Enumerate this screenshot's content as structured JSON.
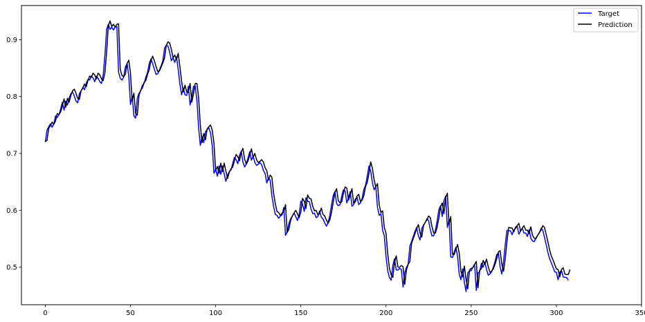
{
  "chart_data": {
    "type": "line",
    "title": "",
    "xlabel": "",
    "ylabel": "",
    "xlim": [
      -14,
      350
    ],
    "ylim": [
      0.434,
      0.96
    ],
    "x_ticks": [
      0,
      50,
      100,
      150,
      200,
      250,
      300,
      350
    ],
    "y_ticks": [
      0.5,
      0.6,
      0.7,
      0.8,
      0.9
    ],
    "grid": false,
    "legend_position": "top-right",
    "series": [
      {
        "name": "Target",
        "color": "#0000ff",
        "x_start": 0,
        "values": [
          0.72,
          0.741,
          0.747,
          0.752,
          0.746,
          0.752,
          0.766,
          0.763,
          0.768,
          0.778,
          0.79,
          0.776,
          0.792,
          0.785,
          0.797,
          0.805,
          0.808,
          0.801,
          0.792,
          0.789,
          0.805,
          0.81,
          0.816,
          0.812,
          0.823,
          0.83,
          0.829,
          0.836,
          0.833,
          0.826,
          0.836,
          0.832,
          0.826,
          0.823,
          0.838,
          0.873,
          0.918,
          0.927,
          0.918,
          0.922,
          0.917,
          0.922,
          0.923,
          0.843,
          0.832,
          0.829,
          0.834,
          0.852,
          0.858,
          0.836,
          0.786,
          0.801,
          0.766,
          0.762,
          0.797,
          0.806,
          0.81,
          0.82,
          0.823,
          0.834,
          0.842,
          0.858,
          0.866,
          0.858,
          0.848,
          0.839,
          0.84,
          0.847,
          0.854,
          0.863,
          0.885,
          0.89,
          0.889,
          0.878,
          0.863,
          0.868,
          0.86,
          0.87,
          0.848,
          0.822,
          0.803,
          0.815,
          0.803,
          0.802,
          0.818,
          0.785,
          0.8,
          0.818,
          0.818,
          0.793,
          0.745,
          0.714,
          0.73,
          0.719,
          0.738,
          0.742,
          0.745,
          0.736,
          0.713,
          0.665,
          0.672,
          0.66,
          0.678,
          0.663,
          0.678,
          0.664,
          0.651,
          0.662,
          0.668,
          0.671,
          0.682,
          0.693,
          0.689,
          0.682,
          0.697,
          0.704,
          0.685,
          0.676,
          0.682,
          0.692,
          0.703,
          0.688,
          0.695,
          0.684,
          0.679,
          0.681,
          0.684,
          0.68,
          0.67,
          0.665,
          0.648,
          0.657,
          0.653,
          0.625,
          0.607,
          0.593,
          0.591,
          0.586,
          0.59,
          0.592,
          0.605,
          0.556,
          0.562,
          0.577,
          0.585,
          0.59,
          0.595,
          0.589,
          0.582,
          0.592,
          0.616,
          0.611,
          0.598,
          0.622,
          0.616,
          0.615,
          0.602,
          0.594,
          0.595,
          0.587,
          0.589,
          0.599,
          0.588,
          0.585,
          0.578,
          0.572,
          0.578,
          0.591,
          0.609,
          0.626,
          0.633,
          0.612,
          0.608,
          0.61,
          0.625,
          0.636,
          0.634,
          0.613,
          0.622,
          0.633,
          0.607,
          0.61,
          0.62,
          0.623,
          0.61,
          0.613,
          0.621,
          0.637,
          0.644,
          0.66,
          0.678,
          0.669,
          0.649,
          0.636,
          0.642,
          0.605,
          0.591,
          0.594,
          0.565,
          0.555,
          0.519,
          0.493,
          0.482,
          0.477,
          0.503,
          0.515,
          0.495,
          0.495,
          0.498,
          0.496,
          0.465,
          0.49,
          0.5,
          0.505,
          0.537,
          0.545,
          0.554,
          0.563,
          0.57,
          0.555,
          0.548,
          0.568,
          0.574,
          0.578,
          0.585,
          0.582,
          0.566,
          0.555,
          0.555,
          0.565,
          0.581,
          0.601,
          0.608,
          0.589,
          0.617,
          0.625,
          0.57,
          0.584,
          0.518,
          0.517,
          0.526,
          0.535,
          0.519,
          0.487,
          0.478,
          0.497,
          0.473,
          0.457,
          0.49,
          0.493,
          0.494,
          0.5,
          0.505,
          0.459,
          0.49,
          0.492,
          0.507,
          0.5,
          0.509,
          0.496,
          0.486,
          0.488,
          0.492,
          0.5,
          0.51,
          0.522,
          0.524,
          0.5,
          0.488,
          0.51,
          0.54,
          0.565,
          0.564,
          0.564,
          0.557,
          0.565,
          0.568,
          0.572,
          0.558,
          0.564,
          0.568,
          0.56,
          0.56,
          0.554,
          0.566,
          0.551,
          0.546,
          0.545,
          0.551,
          0.556,
          0.56,
          0.568,
          0.565,
          0.553,
          0.54,
          0.526,
          0.515,
          0.508,
          0.5,
          0.492,
          0.491,
          0.478,
          0.491,
          0.494,
          0.483,
          0.482,
          0.482,
          0.477
        ]
      },
      {
        "name": "Prediction",
        "color": "#000000",
        "x_start": 0,
        "values": [
          0.721,
          0.723,
          0.744,
          0.749,
          0.755,
          0.751,
          0.757,
          0.77,
          0.768,
          0.773,
          0.783,
          0.796,
          0.781,
          0.797,
          0.79,
          0.802,
          0.81,
          0.813,
          0.806,
          0.797,
          0.795,
          0.81,
          0.815,
          0.822,
          0.817,
          0.828,
          0.836,
          0.834,
          0.841,
          0.838,
          0.831,
          0.841,
          0.838,
          0.831,
          0.828,
          0.842,
          0.878,
          0.924,
          0.933,
          0.923,
          0.927,
          0.922,
          0.927,
          0.928,
          0.848,
          0.837,
          0.835,
          0.839,
          0.858,
          0.864,
          0.841,
          0.792,
          0.806,
          0.771,
          0.767,
          0.802,
          0.811,
          0.815,
          0.825,
          0.828,
          0.839,
          0.847,
          0.863,
          0.871,
          0.863,
          0.853,
          0.844,
          0.845,
          0.852,
          0.859,
          0.868,
          0.89,
          0.896,
          0.894,
          0.883,
          0.868,
          0.873,
          0.865,
          0.876,
          0.853,
          0.827,
          0.808,
          0.82,
          0.808,
          0.807,
          0.823,
          0.79,
          0.805,
          0.823,
          0.823,
          0.798,
          0.75,
          0.719,
          0.735,
          0.724,
          0.743,
          0.747,
          0.75,
          0.741,
          0.718,
          0.67,
          0.677,
          0.665,
          0.683,
          0.668,
          0.683,
          0.669,
          0.656,
          0.667,
          0.673,
          0.676,
          0.687,
          0.698,
          0.694,
          0.687,
          0.702,
          0.709,
          0.69,
          0.681,
          0.687,
          0.697,
          0.708,
          0.693,
          0.7,
          0.689,
          0.684,
          0.686,
          0.689,
          0.685,
          0.675,
          0.67,
          0.653,
          0.662,
          0.658,
          0.63,
          0.612,
          0.598,
          0.596,
          0.591,
          0.595,
          0.597,
          0.61,
          0.561,
          0.567,
          0.582,
          0.59,
          0.595,
          0.6,
          0.594,
          0.587,
          0.597,
          0.621,
          0.616,
          0.603,
          0.627,
          0.621,
          0.62,
          0.607,
          0.599,
          0.6,
          0.592,
          0.594,
          0.604,
          0.593,
          0.59,
          0.583,
          0.577,
          0.583,
          0.596,
          0.614,
          0.631,
          0.638,
          0.617,
          0.613,
          0.615,
          0.63,
          0.641,
          0.639,
          0.618,
          0.627,
          0.638,
          0.612,
          0.615,
          0.625,
          0.628,
          0.615,
          0.618,
          0.626,
          0.642,
          0.649,
          0.665,
          0.685,
          0.674,
          0.654,
          0.641,
          0.647,
          0.61,
          0.596,
          0.599,
          0.57,
          0.56,
          0.524,
          0.498,
          0.487,
          0.482,
          0.508,
          0.52,
          0.5,
          0.5,
          0.503,
          0.501,
          0.47,
          0.495,
          0.505,
          0.51,
          0.542,
          0.55,
          0.559,
          0.568,
          0.575,
          0.56,
          0.553,
          0.573,
          0.579,
          0.583,
          0.59,
          0.587,
          0.571,
          0.56,
          0.56,
          0.57,
          0.586,
          0.606,
          0.613,
          0.594,
          0.622,
          0.63,
          0.575,
          0.589,
          0.523,
          0.522,
          0.531,
          0.54,
          0.524,
          0.492,
          0.483,
          0.502,
          0.478,
          0.462,
          0.495,
          0.498,
          0.499,
          0.505,
          0.51,
          0.464,
          0.495,
          0.497,
          0.512,
          0.505,
          0.514,
          0.501,
          0.491,
          0.493,
          0.497,
          0.505,
          0.515,
          0.527,
          0.529,
          0.505,
          0.493,
          0.515,
          0.545,
          0.57,
          0.569,
          0.569,
          0.562,
          0.57,
          0.573,
          0.577,
          0.563,
          0.569,
          0.573,
          0.565,
          0.565,
          0.559,
          0.571,
          0.556,
          0.551,
          0.55,
          0.556,
          0.561,
          0.565,
          0.573,
          0.57,
          0.558,
          0.545,
          0.531,
          0.52,
          0.513,
          0.505,
          0.497,
          0.496,
          0.483,
          0.496,
          0.499,
          0.488,
          0.487,
          0.487,
          0.496
        ]
      }
    ]
  }
}
